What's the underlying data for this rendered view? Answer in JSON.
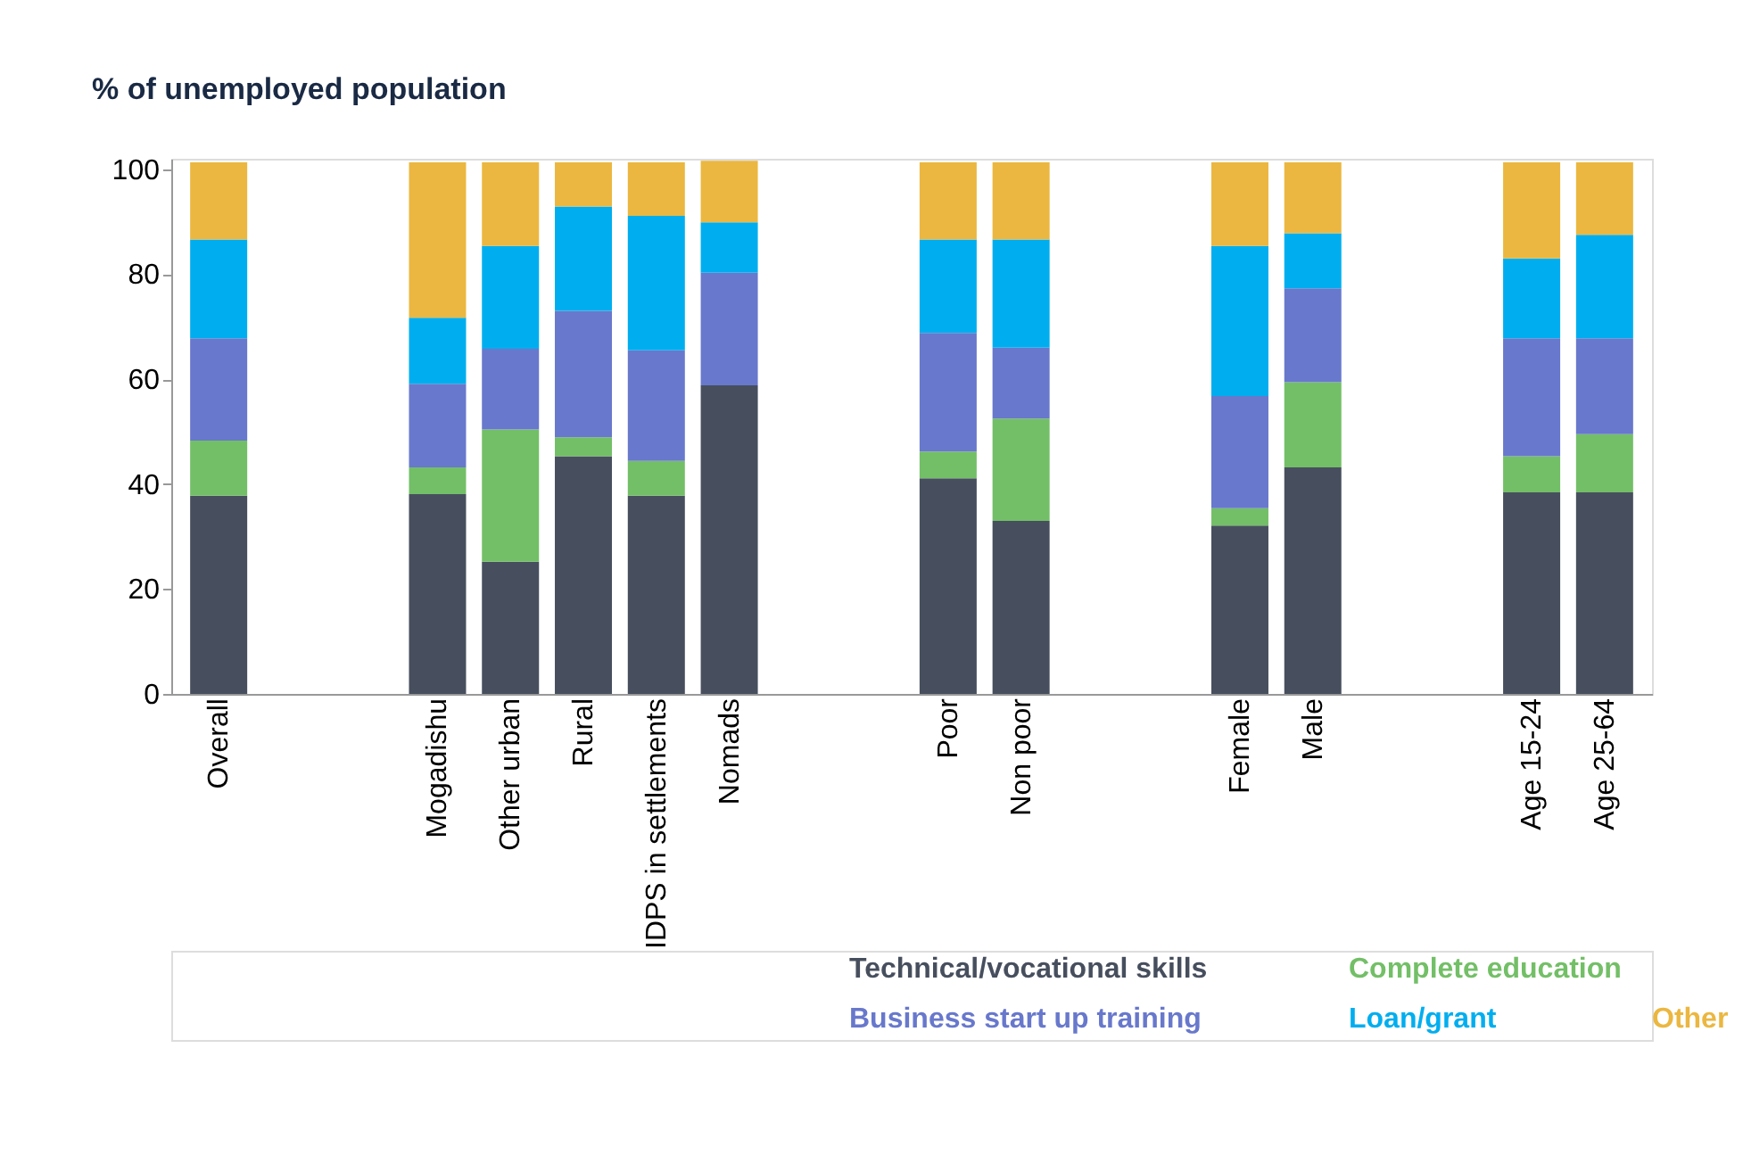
{
  "chart_data": {
    "type": "bar",
    "stacked": true,
    "ylabel": "% of unemployed population",
    "categories": [
      "Overall",
      null,
      null,
      "Mogadishu",
      "Other urban",
      "Rural",
      "IDPS in settlements",
      "Nomads",
      null,
      null,
      "Poor",
      "Non poor",
      null,
      null,
      "Female",
      "Male",
      null,
      null,
      "Age 15-24",
      "Age 25-64"
    ],
    "series": [
      {
        "name": "Technical/vocational skills",
        "color": "#474f5e",
        "values": [
          37.8,
          null,
          null,
          38.1,
          25.2,
          45.3,
          37.8,
          58.8,
          null,
          null,
          41.1,
          33.0,
          null,
          null,
          32.1,
          43.2,
          null,
          null,
          38.4,
          38.4
        ]
      },
      {
        "name": "Complete education",
        "color": "#73bf67",
        "values": [
          10.5,
          null,
          null,
          5.1,
          25.2,
          3.6,
          6.6,
          0,
          null,
          null,
          5.1,
          19.5,
          null,
          null,
          3.3,
          16.2,
          null,
          null,
          6.9,
          11.1
        ]
      },
      {
        "name": "Business start up training",
        "color": "#6878cc",
        "values": [
          19.5,
          null,
          null,
          15.9,
          15.4,
          24.1,
          21.1,
          21.5,
          null,
          null,
          22.6,
          13.5,
          null,
          null,
          21.4,
          17.9,
          null,
          null,
          22.5,
          18.3
        ]
      },
      {
        "name": "Loan/grant",
        "color": "#00aeef",
        "values": [
          18.8,
          null,
          null,
          12.6,
          19.6,
          19.9,
          25.6,
          9.6,
          null,
          null,
          17.8,
          20.6,
          null,
          null,
          28.6,
          10.5,
          null,
          null,
          15.2,
          19.7
        ]
      },
      {
        "name": "Other",
        "color": "#ebb740",
        "values": [
          14.7,
          null,
          null,
          29.6,
          15.9,
          8.4,
          10.2,
          11.7,
          null,
          null,
          14.7,
          14.7,
          null,
          null,
          15.9,
          13.5,
          null,
          null,
          18.3,
          13.8
        ]
      }
    ],
    "ylim": [
      0,
      102
    ],
    "yticks": [
      0,
      20,
      40,
      60,
      80,
      100
    ],
    "grid": false,
    "legend": "bottom"
  }
}
